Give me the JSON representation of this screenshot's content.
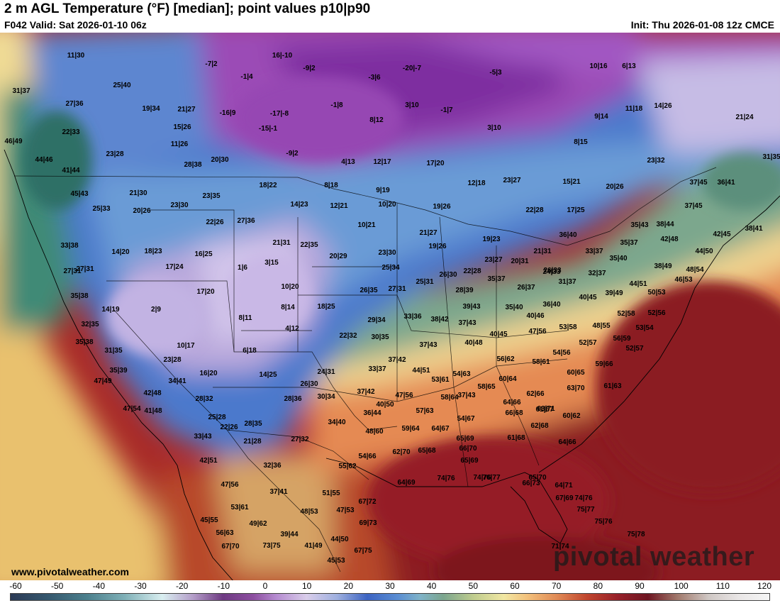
{
  "header": {
    "title": "2 m AGL Temperature (°F) [median]; point values p10|p90",
    "valid": "F042 Valid: Sat 2026-01-10 06z",
    "init": "Init: Thu 2026-01-08 12z CMCE"
  },
  "footer": {
    "url": "www.pivotalweather.com",
    "watermark": "pivotal weather"
  },
  "colorbar": {
    "unit": "°F",
    "ticks": [
      "-60",
      "-50",
      "-40",
      "-30",
      "-20",
      "-10",
      "0",
      "10",
      "20",
      "30",
      "40",
      "50",
      "60",
      "70",
      "80",
      "90",
      "100",
      "110",
      "120"
    ]
  },
  "map": {
    "type": "temperature-map",
    "point_values": [
      {
        "label": "11|30"
      },
      {
        "label": "-7|2"
      },
      {
        "label": "16|-10"
      },
      {
        "label": "-9|2"
      },
      {
        "label": "-20|-7"
      },
      {
        "label": "-5|3"
      },
      {
        "label": "10|16"
      },
      {
        "label": "6|13"
      },
      {
        "label": "31|37"
      },
      {
        "label": "25|40"
      },
      {
        "label": "-1|4"
      },
      {
        "label": "-3|6"
      },
      {
        "label": "27|36"
      },
      {
        "label": "19|34"
      },
      {
        "label": "21|27"
      },
      {
        "label": "-16|9"
      },
      {
        "label": "-17|-8"
      },
      {
        "label": "-1|8"
      },
      {
        "label": "3|10"
      },
      {
        "label": "-1|7"
      },
      {
        "label": "9|14"
      },
      {
        "label": "11|18"
      },
      {
        "label": "14|26"
      },
      {
        "label": "21|24"
      },
      {
        "label": "22|33"
      },
      {
        "label": "15|26"
      },
      {
        "label": "-15|-1"
      },
      {
        "label": "8|12"
      },
      {
        "label": "3|10"
      },
      {
        "label": "46|49"
      },
      {
        "label": "11|26"
      },
      {
        "label": "8|15"
      },
      {
        "label": "23|28"
      },
      {
        "label": "-9|2"
      },
      {
        "label": "44|46"
      },
      {
        "label": "20|30"
      },
      {
        "label": "28|38"
      },
      {
        "label": "4|13"
      },
      {
        "label": "12|17"
      },
      {
        "label": "17|20"
      },
      {
        "label": "23|32"
      },
      {
        "label": "31|35"
      },
      {
        "label": "41|44"
      },
      {
        "label": "12|18"
      },
      {
        "label": "23|27"
      },
      {
        "label": "15|21"
      },
      {
        "label": "20|26"
      },
      {
        "label": "18|22"
      },
      {
        "label": "8|18"
      },
      {
        "label": "9|19"
      },
      {
        "label": "37|45"
      },
      {
        "label": "36|41"
      },
      {
        "label": "21|30"
      },
      {
        "label": "45|43"
      },
      {
        "label": "23|35"
      },
      {
        "label": "14|23"
      },
      {
        "label": "12|21"
      },
      {
        "label": "10|20"
      },
      {
        "label": "19|26"
      },
      {
        "label": "22|28"
      },
      {
        "label": "17|25"
      },
      {
        "label": "37|45"
      },
      {
        "label": "25|33"
      },
      {
        "label": "20|26"
      },
      {
        "label": "23|30"
      },
      {
        "label": "22|26"
      },
      {
        "label": "27|36"
      },
      {
        "label": "10|21"
      },
      {
        "label": "35|43"
      },
      {
        "label": "38|44"
      },
      {
        "label": "38|41"
      },
      {
        "label": "36|40"
      },
      {
        "label": "21|27"
      },
      {
        "label": "42|45"
      },
      {
        "label": "33|38"
      },
      {
        "label": "21|31"
      },
      {
        "label": "22|35"
      },
      {
        "label": "19|23"
      },
      {
        "label": "19|26"
      },
      {
        "label": "27|31"
      },
      {
        "label": "35|37"
      },
      {
        "label": "42|48"
      },
      {
        "label": "44|50"
      },
      {
        "label": "14|20"
      },
      {
        "label": "18|23"
      },
      {
        "label": "16|25"
      },
      {
        "label": "20|29"
      },
      {
        "label": "23|30"
      },
      {
        "label": "21|31"
      },
      {
        "label": "33|37"
      },
      {
        "label": "35|40"
      },
      {
        "label": "27|31"
      },
      {
        "label": "17|24"
      },
      {
        "label": "1|6"
      },
      {
        "label": "3|15"
      },
      {
        "label": "25|34"
      },
      {
        "label": "23|27"
      },
      {
        "label": "20|31"
      },
      {
        "label": "26|33"
      },
      {
        "label": "38|49"
      },
      {
        "label": "48|54"
      },
      {
        "label": "26|30"
      },
      {
        "label": "22|28"
      },
      {
        "label": "24|33"
      },
      {
        "label": "32|37"
      },
      {
        "label": "46|53"
      },
      {
        "label": "35|38"
      },
      {
        "label": "17|20"
      },
      {
        "label": "10|20"
      },
      {
        "label": "27|31"
      },
      {
        "label": "25|31"
      },
      {
        "label": "35|37"
      },
      {
        "label": "26|37"
      },
      {
        "label": "31|37"
      },
      {
        "label": "44|51"
      },
      {
        "label": "26|35"
      },
      {
        "label": "28|39"
      },
      {
        "label": "39|49"
      },
      {
        "label": "40|45"
      },
      {
        "label": "50|53"
      },
      {
        "label": "14|19"
      },
      {
        "label": "2|9"
      },
      {
        "label": "8|14"
      },
      {
        "label": "18|25"
      },
      {
        "label": "39|43"
      },
      {
        "label": "35|40"
      },
      {
        "label": "36|40"
      },
      {
        "label": "52|58"
      },
      {
        "label": "52|56"
      },
      {
        "label": "32|35"
      },
      {
        "label": "8|11"
      },
      {
        "label": "33|36"
      },
      {
        "label": "29|34"
      },
      {
        "label": "38|42"
      },
      {
        "label": "37|43"
      },
      {
        "label": "40|46"
      },
      {
        "label": "53|58"
      },
      {
        "label": "48|55"
      },
      {
        "label": "53|54"
      },
      {
        "label": "4|12"
      },
      {
        "label": "22|32"
      },
      {
        "label": "30|35"
      },
      {
        "label": "47|56"
      },
      {
        "label": "40|45"
      },
      {
        "label": "56|59"
      },
      {
        "label": "35|38"
      },
      {
        "label": "10|17"
      },
      {
        "label": "6|18"
      },
      {
        "label": "37|43"
      },
      {
        "label": "40|48"
      },
      {
        "label": "52|57"
      },
      {
        "label": "31|35"
      },
      {
        "label": "54|56"
      },
      {
        "label": "52|57"
      },
      {
        "label": "23|28"
      },
      {
        "label": "37|42"
      },
      {
        "label": "56|62"
      },
      {
        "label": "58|61"
      },
      {
        "label": "59|66"
      },
      {
        "label": "35|39"
      },
      {
        "label": "24|31"
      },
      {
        "label": "33|37"
      },
      {
        "label": "44|51"
      },
      {
        "label": "54|63"
      },
      {
        "label": "60|65"
      },
      {
        "label": "16|20"
      },
      {
        "label": "14|25"
      },
      {
        "label": "53|61"
      },
      {
        "label": "34|41"
      },
      {
        "label": "26|30"
      },
      {
        "label": "60|64"
      },
      {
        "label": "47|49"
      },
      {
        "label": "58|65"
      },
      {
        "label": "63|70"
      },
      {
        "label": "61|63"
      },
      {
        "label": "37|42"
      },
      {
        "label": "37|43"
      },
      {
        "label": "62|66"
      },
      {
        "label": "42|48"
      },
      {
        "label": "30|34"
      },
      {
        "label": "47|56"
      },
      {
        "label": "28|32"
      },
      {
        "label": "28|36"
      },
      {
        "label": "64|66"
      },
      {
        "label": "58|64"
      },
      {
        "label": "61|67"
      },
      {
        "label": "47|54"
      },
      {
        "label": "41|48"
      },
      {
        "label": "40|50"
      },
      {
        "label": "36|44"
      },
      {
        "label": "57|63"
      },
      {
        "label": "63|71"
      },
      {
        "label": "25|28"
      },
      {
        "label": "34|40"
      },
      {
        "label": "54|67"
      },
      {
        "label": "66|68"
      },
      {
        "label": "60|62"
      },
      {
        "label": "28|35"
      },
      {
        "label": "59|64"
      },
      {
        "label": "64|67"
      },
      {
        "label": "22|26"
      },
      {
        "label": "48|60"
      },
      {
        "label": "62|68"
      },
      {
        "label": "33|43"
      },
      {
        "label": "21|28"
      },
      {
        "label": "27|32"
      },
      {
        "label": "65|69"
      },
      {
        "label": "61|68"
      },
      {
        "label": "64|66"
      },
      {
        "label": "62|70"
      },
      {
        "label": "65|68"
      },
      {
        "label": "66|70"
      },
      {
        "label": "42|51"
      },
      {
        "label": "54|66"
      },
      {
        "label": "32|36"
      },
      {
        "label": "55|62"
      },
      {
        "label": "65|69"
      },
      {
        "label": "47|56"
      },
      {
        "label": "66|73"
      },
      {
        "label": "64|69"
      },
      {
        "label": "74|76"
      },
      {
        "label": "74|76"
      },
      {
        "label": "76|77"
      },
      {
        "label": "65|70"
      },
      {
        "label": "37|41"
      },
      {
        "label": "51|55"
      },
      {
        "label": "64|71"
      },
      {
        "label": "67|69"
      },
      {
        "label": "74|76"
      },
      {
        "label": "53|61"
      },
      {
        "label": "67|72"
      },
      {
        "label": "75|77"
      },
      {
        "label": "48|53"
      },
      {
        "label": "47|53"
      },
      {
        "label": "45|55"
      },
      {
        "label": "49|62"
      },
      {
        "label": "69|73"
      },
      {
        "label": "75|76"
      },
      {
        "label": "56|63"
      },
      {
        "label": "39|44"
      },
      {
        "label": "75|78"
      },
      {
        "label": "44|50"
      },
      {
        "label": "67|70"
      },
      {
        "label": "73|75"
      },
      {
        "label": "41|49"
      },
      {
        "label": "67|75"
      },
      {
        "label": "71|74"
      },
      {
        "label": "45|53"
      }
    ]
  }
}
